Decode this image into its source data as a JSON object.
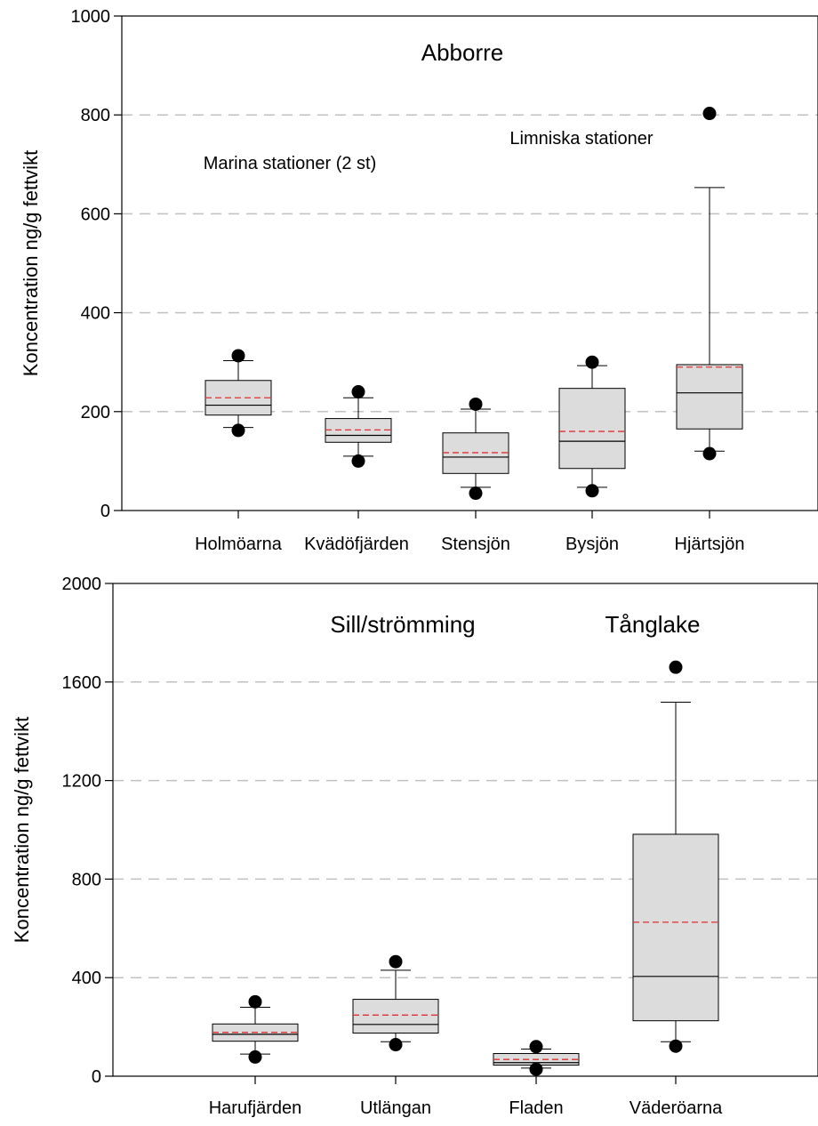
{
  "chart_data": [
    {
      "type": "box",
      "ylabel": "Koncentration ng/g fettvikt",
      "ylim": [
        0,
        1000
      ],
      "yticks": [
        0,
        200,
        400,
        600,
        800,
        1000
      ],
      "grid": "horizontal-dashed",
      "categories": [
        "Holmöarna",
        "Kvädöfjärden",
        "Stensjön",
        "Bysjön",
        "Hjärtsjön"
      ],
      "annotations": [
        {
          "text": "Abborre"
        },
        {
          "text": "Marina stationer (2 st)"
        },
        {
          "text": "Limniska stationer"
        }
      ],
      "boxes": [
        {
          "category": "Holmöarna",
          "min": 168,
          "q1": 193,
          "median": 213,
          "mean": 228,
          "q3": 263,
          "max": 303,
          "outliers": [
            162,
            313
          ]
        },
        {
          "category": "Kvädöfjärden",
          "min": 110,
          "q1": 138,
          "median": 152,
          "mean": 163,
          "q3": 186,
          "max": 228,
          "outliers": [
            100,
            240
          ]
        },
        {
          "category": "Stensjön",
          "min": 47,
          "q1": 75,
          "median": 108,
          "mean": 117,
          "q3": 157,
          "max": 205,
          "outliers": [
            35,
            215
          ]
        },
        {
          "category": "Bysjön",
          "min": 47,
          "q1": 85,
          "median": 140,
          "mean": 160,
          "q3": 247,
          "max": 293,
          "outliers": [
            40,
            300
          ]
        },
        {
          "category": "Hjärtsjön",
          "min": 120,
          "q1": 165,
          "median": 238,
          "mean": 290,
          "q3": 295,
          "max": 653,
          "outliers": [
            115,
            803
          ]
        }
      ],
      "colors": {
        "box_fill": "#dcdcdc",
        "median": "#000000",
        "mean": "#e03030",
        "grid": "#c0c0c0"
      }
    },
    {
      "type": "box",
      "ylabel": "Koncentration ng/g fettvikt",
      "ylim": [
        0,
        2000
      ],
      "yticks": [
        0,
        400,
        800,
        1200,
        1600,
        2000
      ],
      "grid": "horizontal-dashed",
      "categories": [
        "Harufjärden",
        "Utlängan",
        "Fladen",
        "Väderöarna"
      ],
      "annotations": [
        {
          "text": "Sill/strömming"
        },
        {
          "text": "Tånglake"
        }
      ],
      "boxes": [
        {
          "category": "Harufjärden",
          "min": 90,
          "q1": 142,
          "median": 170,
          "mean": 178,
          "q3": 212,
          "max": 280,
          "outliers": [
            78,
            302
          ]
        },
        {
          "category": "Utlängan",
          "min": 140,
          "q1": 175,
          "median": 210,
          "mean": 248,
          "q3": 312,
          "max": 430,
          "outliers": [
            128,
            465
          ]
        },
        {
          "category": "Fladen",
          "min": 33,
          "q1": 45,
          "median": 55,
          "mean": 68,
          "q3": 92,
          "max": 110,
          "outliers": [
            28,
            120
          ]
        },
        {
          "category": "Väderöarna",
          "min": 140,
          "q1": 225,
          "median": 405,
          "mean": 625,
          "q3": 982,
          "max": 1518,
          "outliers": [
            122,
            1660
          ]
        }
      ],
      "colors": {
        "box_fill": "#dcdcdc",
        "median": "#000000",
        "mean": "#e03030",
        "grid": "#c0c0c0"
      }
    }
  ]
}
